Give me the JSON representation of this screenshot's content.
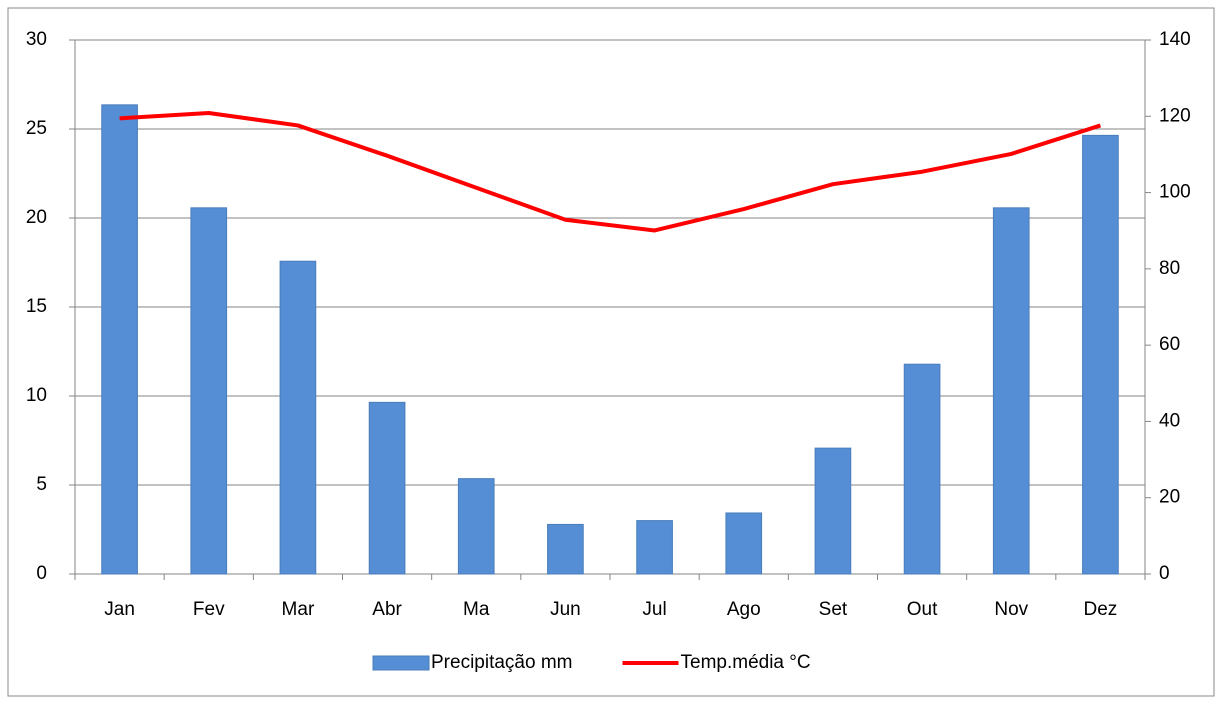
{
  "chart_data": {
    "type": "bar-line",
    "categories": [
      "Jan",
      "Fev",
      "Mar",
      "Abr",
      "Ma",
      "Jun",
      "Jul",
      "Ago",
      "Set",
      "Out",
      "Nov",
      "Dez"
    ],
    "series": [
      {
        "name": "Precipitação mm",
        "type": "bar",
        "axis": "y2",
        "color": "#558ed5",
        "values": [
          123,
          96,
          82,
          45,
          25,
          13,
          14,
          16,
          33,
          55,
          96,
          115
        ]
      },
      {
        "name": "Temp.média °C",
        "type": "line",
        "axis": "y",
        "color": "#ff0000",
        "values": [
          25.6,
          25.9,
          25.2,
          23.5,
          21.7,
          19.9,
          19.3,
          20.5,
          21.9,
          22.6,
          23.6,
          25.2
        ]
      }
    ],
    "ylim": [
      0,
      30
    ],
    "yticks": [
      0,
      5,
      10,
      15,
      20,
      25,
      30
    ],
    "y2lim": [
      0,
      140
    ],
    "y2ticks": [
      0,
      20,
      40,
      60,
      80,
      100,
      120,
      140
    ],
    "grid": true,
    "legend": "bottom"
  }
}
